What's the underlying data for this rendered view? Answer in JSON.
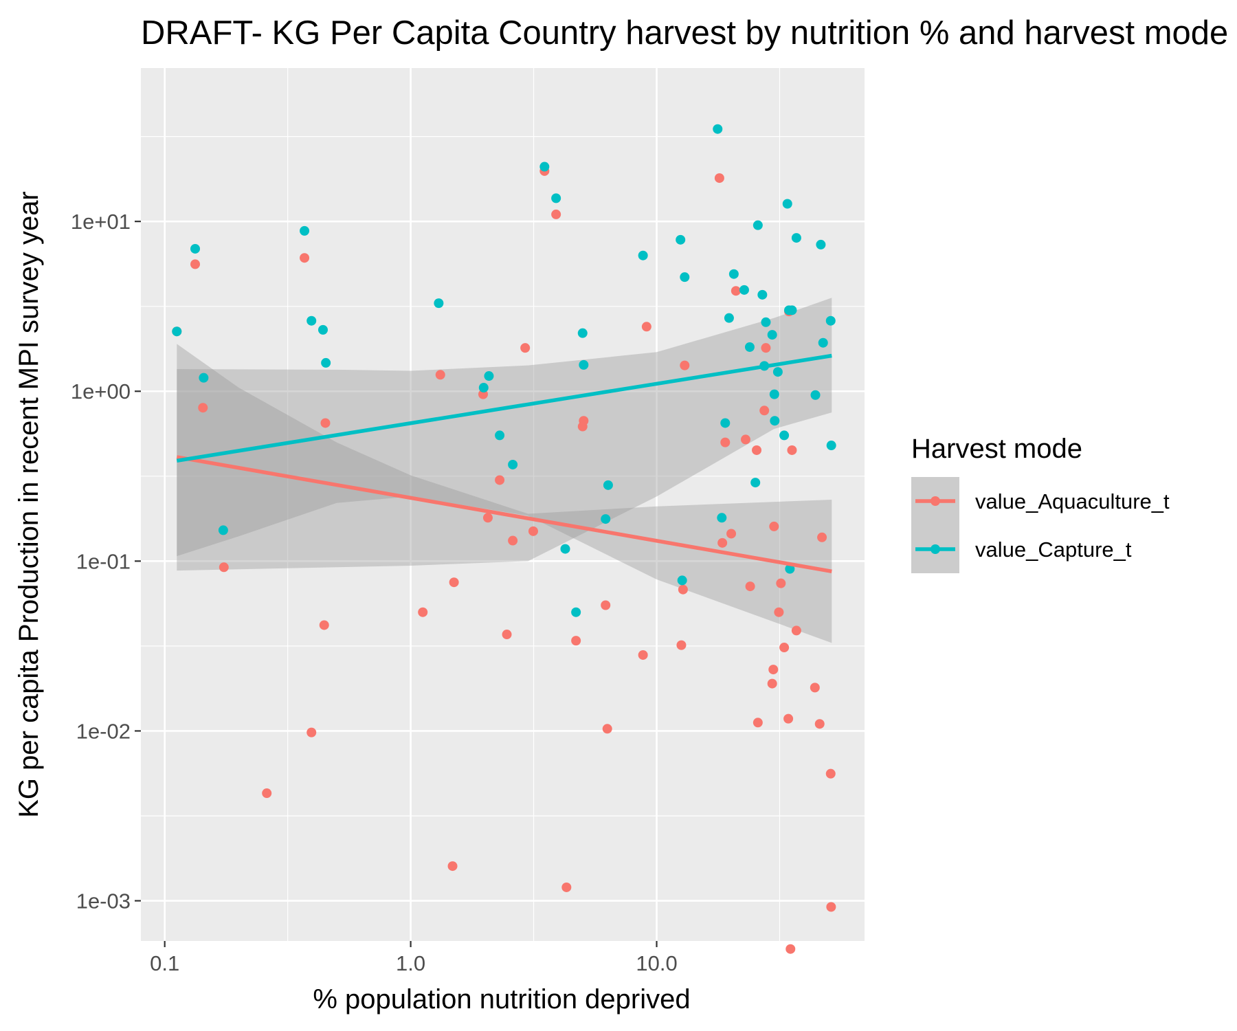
{
  "chart_data": {
    "type": "scatter",
    "title": "DRAFT- KG Per Capita Country harvest by nutrition % and harvest mode",
    "xlabel": "% population nutrition deprived",
    "ylabel": "KG per capita Production in recent MPI survey year",
    "x_scale": "log10",
    "y_scale": "log10",
    "xlim": [
      0.08,
      70
    ],
    "ylim": [
      0.00058,
      80
    ],
    "x_ticks": [
      {
        "value": 0.1,
        "label": "0.1"
      },
      {
        "value": 1,
        "label": "1.0"
      },
      {
        "value": 10,
        "label": "10.0"
      }
    ],
    "y_ticks": [
      {
        "value": 0.001,
        "label": "1e-03"
      },
      {
        "value": 0.01,
        "label": "1e-02"
      },
      {
        "value": 0.1,
        "label": "1e-01"
      },
      {
        "value": 1,
        "label": "1e+00"
      },
      {
        "value": 10,
        "label": "1e+01"
      }
    ],
    "grid": true,
    "legend": {
      "title": "Harvest mode",
      "position": "right"
    },
    "series": [
      {
        "name": "value_Aquaculture_t",
        "color": "#F8766D",
        "points": [
          [
            0.112,
            2.25
          ],
          [
            0.133,
            5.6
          ],
          [
            0.143,
            0.8
          ],
          [
            0.174,
            0.092
          ],
          [
            0.26,
            0.0043
          ],
          [
            0.37,
            6.1
          ],
          [
            0.395,
            0.0098
          ],
          [
            0.445,
            0.042
          ],
          [
            0.45,
            0.65
          ],
          [
            1.12,
            0.05
          ],
          [
            1.32,
            1.25
          ],
          [
            1.48,
            0.0016
          ],
          [
            1.5,
            0.075
          ],
          [
            1.97,
            0.96
          ],
          [
            2.06,
            0.18
          ],
          [
            2.3,
            0.3
          ],
          [
            2.46,
            0.037
          ],
          [
            2.6,
            0.132
          ],
          [
            2.92,
            1.8
          ],
          [
            3.15,
            0.15
          ],
          [
            3.5,
            19.8
          ],
          [
            3.9,
            11.0
          ],
          [
            4.3,
            0.0012
          ],
          [
            4.7,
            0.034
          ],
          [
            5.0,
            0.62
          ],
          [
            5.05,
            0.67
          ],
          [
            6.2,
            0.055
          ],
          [
            6.3,
            0.0103
          ],
          [
            8.8,
            0.028
          ],
          [
            9.1,
            2.4
          ],
          [
            12.6,
            0.032
          ],
          [
            12.8,
            0.068
          ],
          [
            13.0,
            1.42
          ],
          [
            18.0,
            18.0
          ],
          [
            18.5,
            0.128
          ],
          [
            19.0,
            0.5
          ],
          [
            20.1,
            0.145
          ],
          [
            21.0,
            3.9
          ],
          [
            23.0,
            0.52
          ],
          [
            24.0,
            0.071
          ],
          [
            25.5,
            0.45
          ],
          [
            25.8,
            0.0112
          ],
          [
            27.4,
            0.77
          ],
          [
            27.8,
            1.8
          ],
          [
            29.5,
            0.019
          ],
          [
            29.8,
            0.023
          ],
          [
            30.0,
            0.16
          ],
          [
            31.4,
            0.05
          ],
          [
            32.0,
            0.074
          ],
          [
            33.0,
            0.031
          ],
          [
            34.3,
            0.0118
          ],
          [
            34.5,
            2.95
          ],
          [
            35.0,
            0.00052
          ],
          [
            35.5,
            0.45
          ],
          [
            37.0,
            0.039
          ],
          [
            44.0,
            0.018
          ],
          [
            46.0,
            0.011
          ],
          [
            47.0,
            0.138
          ],
          [
            51.0,
            0.0056
          ],
          [
            51.2,
            0.00092
          ]
        ]
      },
      {
        "name": "value_Capture_t",
        "color": "#00BFC4",
        "points": [
          [
            0.112,
            2.25
          ],
          [
            0.133,
            6.9
          ],
          [
            0.144,
            1.2
          ],
          [
            0.173,
            0.152
          ],
          [
            0.37,
            8.8
          ],
          [
            0.395,
            2.6
          ],
          [
            0.44,
            2.3
          ],
          [
            0.452,
            1.47
          ],
          [
            1.3,
            3.3
          ],
          [
            1.98,
            1.05
          ],
          [
            2.08,
            1.23
          ],
          [
            2.3,
            0.55
          ],
          [
            2.6,
            0.37
          ],
          [
            3.5,
            21.0
          ],
          [
            3.9,
            13.7
          ],
          [
            4.25,
            0.118
          ],
          [
            4.7,
            0.05
          ],
          [
            5.0,
            2.2
          ],
          [
            5.05,
            1.43
          ],
          [
            6.2,
            0.177
          ],
          [
            6.35,
            0.28
          ],
          [
            8.8,
            6.3
          ],
          [
            12.5,
            7.8
          ],
          [
            12.7,
            0.077
          ],
          [
            13.0,
            4.7
          ],
          [
            17.7,
            35.0
          ],
          [
            18.4,
            0.18
          ],
          [
            19.0,
            0.65
          ],
          [
            19.7,
            2.7
          ],
          [
            20.6,
            4.9
          ],
          [
            22.7,
            3.95
          ],
          [
            23.9,
            1.82
          ],
          [
            25.2,
            0.29
          ],
          [
            25.8,
            9.5
          ],
          [
            26.9,
            3.7
          ],
          [
            27.4,
            1.41
          ],
          [
            27.8,
            2.55
          ],
          [
            29.5,
            2.15
          ],
          [
            30.1,
            0.96
          ],
          [
            30.2,
            0.67
          ],
          [
            31.1,
            1.3
          ],
          [
            33.0,
            0.55
          ],
          [
            34.0,
            12.7
          ],
          [
            34.5,
            3.0
          ],
          [
            35.5,
            3.0
          ],
          [
            34.8,
            0.09
          ],
          [
            37.0,
            8.0
          ],
          [
            44.2,
            0.95
          ],
          [
            46.5,
            7.3
          ],
          [
            47.5,
            1.93
          ],
          [
            51.0,
            2.6
          ],
          [
            51.3,
            0.48
          ]
        ]
      }
    ],
    "smooth_lines": [
      {
        "series": "value_Aquaculture_t",
        "from": [
          0.112,
          0.41
        ],
        "to": [
          51.5,
          0.087
        ],
        "band": [
          [
            0.112,
            0.107,
            1.9
          ],
          [
            0.2,
            0.14,
            1.05
          ],
          [
            0.5,
            0.22,
            0.5
          ],
          [
            1.0,
            0.24,
            0.32
          ],
          [
            3.0,
            0.185,
            0.19
          ],
          [
            10.0,
            0.078,
            0.21
          ],
          [
            51.5,
            0.033,
            0.23
          ]
        ]
      },
      {
        "series": "value_Capture_t",
        "from": [
          0.112,
          0.39
        ],
        "to": [
          51.5,
          1.62
        ],
        "band": [
          [
            0.112,
            0.088,
            1.35
          ],
          [
            0.5,
            0.092,
            1.34
          ],
          [
            1.0,
            0.094,
            1.32
          ],
          [
            3.0,
            0.1,
            1.42
          ],
          [
            10.0,
            0.24,
            1.7
          ],
          [
            30.0,
            0.6,
            2.7
          ],
          [
            51.5,
            0.75,
            3.55
          ]
        ]
      }
    ]
  }
}
